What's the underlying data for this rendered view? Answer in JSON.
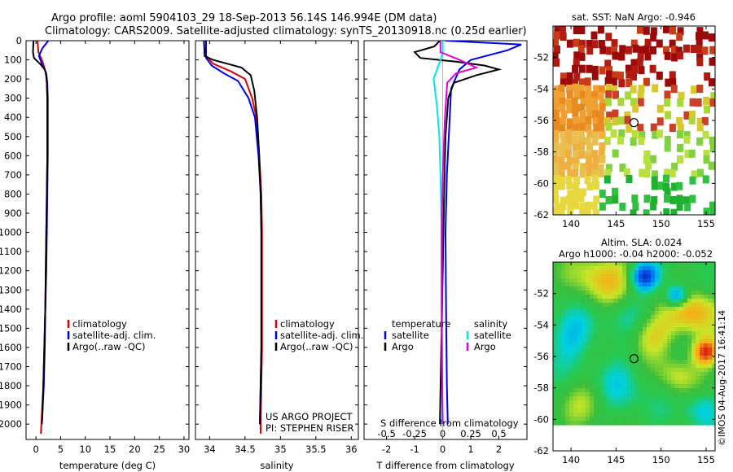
{
  "header": {
    "line1": "Argo profile: aoml 5904103_29 18-Sep-2013 56.14S 146.994E (DM data)",
    "line2": "Climatology: CARS2009. Satellite-adjusted climatology: synTS_20130918.nc (0.25d earlier)"
  },
  "credit": {
    "project": "US ARGO PROJECT",
    "pi": "PI: STEPHEN RISER"
  },
  "watermark": "©IMOS 04-Aug-2017 16:41:14",
  "colors": {
    "climatology": "#e00000",
    "satellite": "#0000ee",
    "argo": "#000000",
    "sal_satellite": "#00e8e8",
    "sal_argo": "#e000e0"
  },
  "chart_data": [
    {
      "type": "line",
      "id": "temperature",
      "xlabel": "temperature (deg C)",
      "xlim": [
        -2,
        31
      ],
      "ylim": [
        2080,
        0
      ],
      "x_ticks": [
        "0",
        "5",
        "10",
        "15",
        "20",
        "25",
        "30"
      ],
      "y_ticks": [
        "0",
        "100",
        "200",
        "300",
        "400",
        "500",
        "600",
        "700",
        "800",
        "900",
        "1000",
        "1100",
        "1200",
        "1300",
        "1400",
        "1500",
        "1600",
        "1700",
        "1800",
        "1900",
        "2000"
      ],
      "legend": [
        "climatology",
        "satellite-adj. clim.",
        "Argo(..raw -QC)"
      ],
      "series": [
        {
          "name": "climatology",
          "points": [
            [
              0.3,
              0
            ],
            [
              0.5,
              60
            ],
            [
              1.2,
              100
            ],
            [
              1.6,
              130
            ],
            [
              2.0,
              170
            ],
            [
              2.2,
              220
            ],
            [
              2.3,
              300
            ],
            [
              2.3,
              400
            ],
            [
              2.3,
              600
            ],
            [
              2.2,
              800
            ],
            [
              2.1,
              1000
            ],
            [
              2.0,
              1200
            ],
            [
              1.9,
              1400
            ],
            [
              1.7,
              1600
            ],
            [
              1.5,
              1800
            ],
            [
              1.2,
              1950
            ],
            [
              1.0,
              2050
            ]
          ]
        },
        {
          "name": "satellite",
          "points": [
            [
              2.5,
              0
            ],
            [
              1.3,
              40
            ],
            [
              0.6,
              80
            ],
            [
              1.2,
              120
            ],
            [
              2.1,
              170
            ],
            [
              2.3,
              220
            ],
            [
              2.4,
              300
            ],
            [
              2.4,
              400
            ],
            [
              2.4,
              600
            ],
            [
              2.3,
              800
            ],
            [
              2.2,
              1000
            ],
            [
              2.1,
              1200
            ],
            [
              1.9,
              1400
            ],
            [
              1.8,
              1600
            ],
            [
              1.6,
              1800
            ],
            [
              1.3,
              1950
            ],
            [
              1.2,
              2000
            ]
          ]
        },
        {
          "name": "argo",
          "points": [
            [
              -0.5,
              0
            ],
            [
              -0.6,
              60
            ],
            [
              -0.4,
              90
            ],
            [
              0.8,
              120
            ],
            [
              1.8,
              150
            ],
            [
              2.1,
              180
            ],
            [
              2.2,
              220
            ],
            [
              2.3,
              300
            ],
            [
              2.3,
              400
            ],
            [
              2.3,
              600
            ],
            [
              2.2,
              800
            ],
            [
              2.1,
              1000
            ],
            [
              2.0,
              1200
            ],
            [
              1.9,
              1400
            ],
            [
              1.7,
              1600
            ],
            [
              1.5,
              1800
            ],
            [
              1.3,
              1950
            ],
            [
              1.2,
              2000
            ]
          ]
        }
      ]
    },
    {
      "type": "line",
      "id": "salinity",
      "xlabel": "salinity",
      "xlim": [
        33.8,
        36.1
      ],
      "ylim": [
        2080,
        0
      ],
      "x_ticks": [
        "34",
        "34.5",
        "35",
        "35.5",
        "36"
      ],
      "legend": [
        "climatology",
        "satellite-adj. clim.",
        "Argo(..raw -QC)"
      ],
      "series": [
        {
          "name": "climatology",
          "points": [
            [
              33.95,
              0
            ],
            [
              33.95,
              80
            ],
            [
              34.05,
              120
            ],
            [
              34.3,
              160
            ],
            [
              34.5,
              200
            ],
            [
              34.6,
              300
            ],
            [
              34.66,
              400
            ],
            [
              34.7,
              600
            ],
            [
              34.73,
              800
            ],
            [
              34.74,
              1000
            ],
            [
              34.74,
              1200
            ],
            [
              34.74,
              1400
            ],
            [
              34.74,
              1600
            ],
            [
              34.73,
              1800
            ],
            [
              34.72,
              2000
            ],
            [
              34.72,
              2050
            ]
          ]
        },
        {
          "name": "satellite",
          "points": [
            [
              33.95,
              0
            ],
            [
              33.95,
              90
            ],
            [
              34.03,
              130
            ],
            [
              34.2,
              170
            ],
            [
              34.4,
              210
            ],
            [
              34.55,
              300
            ],
            [
              34.64,
              400
            ],
            [
              34.69,
              600
            ],
            [
              34.72,
              800
            ],
            [
              34.73,
              1000
            ],
            [
              34.73,
              1200
            ],
            [
              34.73,
              1400
            ],
            [
              34.73,
              1600
            ],
            [
              34.72,
              1800
            ],
            [
              34.71,
              2000
            ]
          ]
        },
        {
          "name": "argo",
          "points": [
            [
              33.92,
              0
            ],
            [
              33.93,
              80
            ],
            [
              34.05,
              100
            ],
            [
              34.25,
              120
            ],
            [
              34.45,
              140
            ],
            [
              34.58,
              180
            ],
            [
              34.63,
              260
            ],
            [
              34.67,
              400
            ],
            [
              34.7,
              600
            ],
            [
              34.72,
              800
            ],
            [
              34.73,
              1000
            ],
            [
              34.73,
              1200
            ],
            [
              34.73,
              1400
            ],
            [
              34.73,
              1600
            ],
            [
              34.72,
              1800
            ],
            [
              34.71,
              2000
            ]
          ]
        }
      ]
    },
    {
      "type": "line",
      "id": "difference",
      "xlabel": "T difference from climatology",
      "top_axis_label": "S difference from climatology",
      "xlim_T": [
        -2.8,
        3.0
      ],
      "xlim_S": [
        -0.7,
        0.75
      ],
      "ylim": [
        2080,
        0
      ],
      "x_ticks_T": [
        "-2",
        "-1",
        "0",
        "1",
        "2"
      ],
      "x_ticks_S": [
        "-0.5",
        "-0.25",
        "0",
        "0.25",
        "0.5"
      ],
      "legend": {
        "temperature_heading": "temperature",
        "salinity_heading": "salinity",
        "satellite": "satellite",
        "argo": "Argo"
      },
      "series": [
        {
          "name": "temperature satellite",
          "points": [
            [
              0.1,
              0
            ],
            [
              2.8,
              20
            ],
            [
              2.3,
              50
            ],
            [
              1.0,
              100
            ],
            [
              0.6,
              150
            ],
            [
              0.3,
              250
            ],
            [
              0.25,
              400
            ],
            [
              0.15,
              700
            ],
            [
              0.1,
              1000
            ],
            [
              0.12,
              1400
            ],
            [
              0.15,
              1800
            ],
            [
              0.18,
              2000
            ]
          ]
        },
        {
          "name": "temperature Argo",
          "points": [
            [
              -0.1,
              0
            ],
            [
              -0.3,
              30
            ],
            [
              -1.0,
              60
            ],
            [
              -0.8,
              90
            ],
            [
              0.5,
              110
            ],
            [
              1.5,
              130
            ],
            [
              2.0,
              150
            ],
            [
              1.2,
              180
            ],
            [
              0.4,
              220
            ],
            [
              0.2,
              300
            ],
            [
              0.1,
              500
            ],
            [
              0.05,
              800
            ],
            [
              0.0,
              1200
            ],
            [
              -0.05,
              1600
            ],
            [
              -0.1,
              2000
            ]
          ]
        },
        {
          "name": "salinity satellite",
          "points": [
            [
              0.0,
              0
            ],
            [
              0.0,
              60
            ],
            [
              -0.02,
              100
            ],
            [
              -0.08,
              200
            ],
            [
              -0.05,
              350
            ],
            [
              -0.03,
              500
            ],
            [
              -0.02,
              700
            ],
            [
              -0.01,
              1000
            ],
            [
              -0.01,
              1400
            ],
            [
              -0.005,
              1800
            ],
            [
              -0.005,
              2000
            ]
          ]
        },
        {
          "name": "salinity Argo",
          "points": [
            [
              -0.02,
              0
            ],
            [
              -0.02,
              60
            ],
            [
              0.15,
              100
            ],
            [
              0.3,
              140
            ],
            [
              0.12,
              170
            ],
            [
              0.04,
              220
            ],
            [
              0.02,
              400
            ],
            [
              0.0,
              700
            ],
            [
              -0.01,
              1000
            ],
            [
              -0.01,
              1500
            ],
            [
              0.0,
              2000
            ]
          ]
        }
      ]
    },
    {
      "type": "heatmap",
      "id": "sst_map",
      "title": "sat. SST: NaN Argo: -0.946",
      "xlim": [
        138,
        156
      ],
      "ylim": [
        -62,
        -50
      ],
      "x_ticks": [
        "140",
        "145",
        "150",
        "155"
      ],
      "y_ticks": [
        "-52",
        "-54",
        "-56",
        "-58",
        "-60",
        "-62"
      ],
      "argo_position": [
        146.994,
        -56.14
      ]
    },
    {
      "type": "heatmap",
      "id": "sla_map",
      "title_line1": "Altim. SLA: 0.024",
      "title_line2": "Argo h1000: -0.04 h2000: -0.052",
      "xlim": [
        138,
        156
      ],
      "ylim": [
        -62,
        -50
      ],
      "x_ticks": [
        "140",
        "145",
        "150",
        "155"
      ],
      "y_ticks": [
        "-52",
        "-54",
        "-56",
        "-58",
        "-60",
        "-62"
      ],
      "argo_position": [
        146.994,
        -56.14
      ]
    }
  ]
}
